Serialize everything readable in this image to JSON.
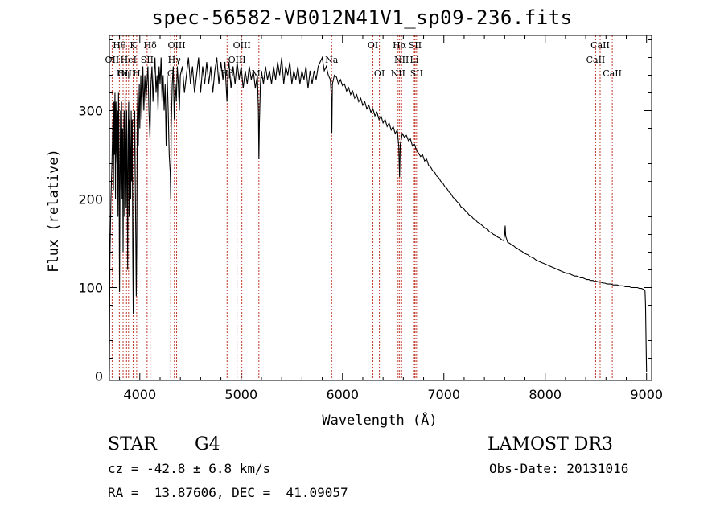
{
  "chart_data": {
    "type": "line",
    "title": "spec-56582-VB012N41V1_sp09-236.fits",
    "xlabel": "Wavelength (Å)",
    "ylabel": "Flux (relative)",
    "xlim": [
      3700,
      9050
    ],
    "ylim": [
      -5,
      385
    ],
    "xticks": [
      4000,
      5000,
      6000,
      7000,
      8000,
      9000
    ],
    "yticks": [
      0,
      100,
      200,
      300
    ],
    "line_color": "#000000",
    "marker_color": "#c0392b",
    "spectrum": [
      [
        3700,
        5
      ],
      [
        3705,
        130
      ],
      [
        3715,
        200
      ],
      [
        3725,
        240
      ],
      [
        3735,
        290
      ],
      [
        3740,
        210
      ],
      [
        3745,
        310
      ],
      [
        3750,
        250
      ],
      [
        3755,
        320
      ],
      [
        3760,
        200
      ],
      [
        3765,
        310
      ],
      [
        3770,
        260
      ],
      [
        3775,
        240
      ],
      [
        3780,
        300
      ],
      [
        3785,
        180
      ],
      [
        3790,
        320
      ],
      [
        3795,
        250
      ],
      [
        3800,
        95
      ],
      [
        3805,
        230
      ],
      [
        3810,
        300
      ],
      [
        3815,
        210
      ],
      [
        3820,
        310
      ],
      [
        3825,
        200
      ],
      [
        3830,
        280
      ],
      [
        3835,
        140
      ],
      [
        3840,
        260
      ],
      [
        3845,
        300
      ],
      [
        3850,
        180
      ],
      [
        3855,
        320
      ],
      [
        3860,
        260
      ],
      [
        3865,
        190
      ],
      [
        3870,
        300
      ],
      [
        3875,
        230
      ],
      [
        3880,
        120
      ],
      [
        3885,
        270
      ],
      [
        3890,
        310
      ],
      [
        3895,
        180
      ],
      [
        3900,
        290
      ],
      [
        3905,
        250
      ],
      [
        3910,
        200
      ],
      [
        3915,
        300
      ],
      [
        3920,
        220
      ],
      [
        3925,
        290
      ],
      [
        3930,
        140
      ],
      [
        3935,
        70
      ],
      [
        3940,
        180
      ],
      [
        3945,
        280
      ],
      [
        3950,
        300
      ],
      [
        3955,
        220
      ],
      [
        3960,
        160
      ],
      [
        3965,
        90
      ],
      [
        3970,
        150
      ],
      [
        3975,
        290
      ],
      [
        3980,
        320
      ],
      [
        3985,
        260
      ],
      [
        3990,
        300
      ],
      [
        3995,
        330
      ],
      [
        4000,
        280
      ],
      [
        4010,
        340
      ],
      [
        4020,
        290
      ],
      [
        4030,
        350
      ],
      [
        4040,
        300
      ],
      [
        4050,
        340
      ],
      [
        4060,
        310
      ],
      [
        4070,
        330
      ],
      [
        4080,
        350
      ],
      [
        4090,
        300
      ],
      [
        4100,
        270
      ],
      [
        4110,
        330
      ],
      [
        4120,
        350
      ],
      [
        4130,
        310
      ],
      [
        4140,
        340
      ],
      [
        4150,
        360
      ],
      [
        4160,
        320
      ],
      [
        4170,
        340
      ],
      [
        4180,
        300
      ],
      [
        4190,
        350
      ],
      [
        4200,
        330
      ],
      [
        4210,
        360
      ],
      [
        4220,
        310
      ],
      [
        4230,
        340
      ],
      [
        4240,
        300
      ],
      [
        4250,
        330
      ],
      [
        4260,
        260
      ],
      [
        4270,
        340
      ],
      [
        4280,
        300
      ],
      [
        4290,
        250
      ],
      [
        4300,
        230
      ],
      [
        4305,
        200
      ],
      [
        4310,
        280
      ],
      [
        4320,
        330
      ],
      [
        4330,
        350
      ],
      [
        4340,
        290
      ],
      [
        4350,
        330
      ],
      [
        4360,
        310
      ],
      [
        4370,
        350
      ],
      [
        4380,
        330
      ],
      [
        4390,
        300
      ],
      [
        4400,
        340
      ],
      [
        4420,
        350
      ],
      [
        4440,
        320
      ],
      [
        4460,
        340
      ],
      [
        4480,
        360
      ],
      [
        4500,
        330
      ],
      [
        4520,
        350
      ],
      [
        4540,
        320
      ],
      [
        4560,
        340
      ],
      [
        4580,
        360
      ],
      [
        4600,
        320
      ],
      [
        4620,
        350
      ],
      [
        4640,
        330
      ],
      [
        4660,
        355
      ],
      [
        4680,
        330
      ],
      [
        4700,
        350
      ],
      [
        4720,
        320
      ],
      [
        4740,
        345
      ],
      [
        4760,
        360
      ],
      [
        4780,
        330
      ],
      [
        4800,
        355
      ],
      [
        4820,
        335
      ],
      [
        4840,
        355
      ],
      [
        4860,
        310
      ],
      [
        4870,
        345
      ],
      [
        4880,
        355
      ],
      [
        4900,
        325
      ],
      [
        4920,
        350
      ],
      [
        4940,
        330
      ],
      [
        4960,
        355
      ],
      [
        4980,
        335
      ],
      [
        5000,
        350
      ],
      [
        5020,
        325
      ],
      [
        5040,
        345
      ],
      [
        5060,
        330
      ],
      [
        5080,
        350
      ],
      [
        5100,
        335
      ],
      [
        5120,
        345
      ],
      [
        5140,
        325
      ],
      [
        5160,
        340
      ],
      [
        5170,
        300
      ],
      [
        5175,
        245
      ],
      [
        5180,
        285
      ],
      [
        5190,
        330
      ],
      [
        5200,
        345
      ],
      [
        5220,
        330
      ],
      [
        5240,
        350
      ],
      [
        5260,
        335
      ],
      [
        5280,
        345
      ],
      [
        5300,
        330
      ],
      [
        5320,
        350
      ],
      [
        5340,
        335
      ],
      [
        5360,
        355
      ],
      [
        5380,
        340
      ],
      [
        5400,
        360
      ],
      [
        5420,
        330
      ],
      [
        5440,
        350
      ],
      [
        5460,
        340
      ],
      [
        5480,
        355
      ],
      [
        5500,
        330
      ],
      [
        5520,
        345
      ],
      [
        5540,
        335
      ],
      [
        5560,
        350
      ],
      [
        5580,
        330
      ],
      [
        5600,
        345
      ],
      [
        5620,
        335
      ],
      [
        5640,
        350
      ],
      [
        5660,
        325
      ],
      [
        5680,
        345
      ],
      [
        5700,
        330
      ],
      [
        5720,
        345
      ],
      [
        5740,
        335
      ],
      [
        5760,
        350
      ],
      [
        5780,
        355
      ],
      [
        5800,
        360
      ],
      [
        5820,
        345
      ],
      [
        5840,
        350
      ],
      [
        5860,
        340
      ],
      [
        5880,
        335
      ],
      [
        5890,
        315
      ],
      [
        5895,
        275
      ],
      [
        5900,
        330
      ],
      [
        5920,
        340
      ],
      [
        5940,
        338
      ],
      [
        5960,
        330
      ],
      [
        5980,
        335
      ],
      [
        6000,
        328
      ],
      [
        6020,
        330
      ],
      [
        6040,
        322
      ],
      [
        6060,
        326
      ],
      [
        6080,
        318
      ],
      [
        6100,
        322
      ],
      [
        6120,
        314
      ],
      [
        6140,
        318
      ],
      [
        6160,
        310
      ],
      [
        6180,
        314
      ],
      [
        6200,
        306
      ],
      [
        6220,
        310
      ],
      [
        6240,
        302
      ],
      [
        6260,
        306
      ],
      [
        6280,
        298
      ],
      [
        6300,
        302
      ],
      [
        6320,
        294
      ],
      [
        6340,
        298
      ],
      [
        6360,
        290
      ],
      [
        6380,
        294
      ],
      [
        6400,
        286
      ],
      [
        6420,
        290
      ],
      [
        6440,
        282
      ],
      [
        6460,
        286
      ],
      [
        6480,
        278
      ],
      [
        6500,
        282
      ],
      [
        6520,
        274
      ],
      [
        6540,
        278
      ],
      [
        6555,
        260
      ],
      [
        6563,
        225
      ],
      [
        6570,
        262
      ],
      [
        6590,
        274
      ],
      [
        6610,
        270
      ],
      [
        6630,
        272
      ],
      [
        6650,
        266
      ],
      [
        6670,
        268
      ],
      [
        6690,
        260
      ],
      [
        6710,
        262
      ],
      [
        6730,
        255
      ],
      [
        6750,
        252
      ],
      [
        6770,
        248
      ],
      [
        6790,
        250
      ],
      [
        6810,
        243
      ],
      [
        6830,
        245
      ],
      [
        6850,
        238
      ],
      [
        6870,
        236
      ],
      [
        6890,
        232
      ],
      [
        6910,
        230
      ],
      [
        6930,
        226
      ],
      [
        6950,
        224
      ],
      [
        6970,
        220
      ],
      [
        6990,
        218
      ],
      [
        7010,
        214
      ],
      [
        7030,
        212
      ],
      [
        7050,
        208
      ],
      [
        7070,
        206
      ],
      [
        7090,
        202
      ],
      [
        7110,
        200
      ],
      [
        7130,
        197
      ],
      [
        7150,
        195
      ],
      [
        7170,
        191
      ],
      [
        7190,
        190
      ],
      [
        7210,
        187
      ],
      [
        7230,
        185
      ],
      [
        7250,
        182
      ],
      [
        7270,
        181
      ],
      [
        7290,
        178
      ],
      [
        7310,
        177
      ],
      [
        7330,
        174
      ],
      [
        7350,
        173
      ],
      [
        7370,
        171
      ],
      [
        7390,
        169
      ],
      [
        7410,
        167
      ],
      [
        7430,
        166
      ],
      [
        7450,
        163
      ],
      [
        7470,
        162
      ],
      [
        7490,
        160
      ],
      [
        7510,
        159
      ],
      [
        7530,
        157
      ],
      [
        7550,
        156
      ],
      [
        7570,
        154
      ],
      [
        7590,
        153
      ],
      [
        7600,
        160
      ],
      [
        7605,
        170
      ],
      [
        7610,
        158
      ],
      [
        7630,
        151
      ],
      [
        7650,
        150
      ],
      [
        7670,
        148
      ],
      [
        7690,
        147
      ],
      [
        7710,
        145
      ],
      [
        7730,
        144
      ],
      [
        7750,
        142
      ],
      [
        7770,
        141
      ],
      [
        7790,
        139
      ],
      [
        7810,
        138
      ],
      [
        7830,
        137
      ],
      [
        7850,
        135
      ],
      [
        7870,
        134
      ],
      [
        7890,
        133
      ],
      [
        7910,
        131
      ],
      [
        7930,
        130
      ],
      [
        7950,
        129
      ],
      [
        7970,
        128
      ],
      [
        7990,
        127
      ],
      [
        8010,
        126
      ],
      [
        8030,
        125
      ],
      [
        8050,
        124
      ],
      [
        8070,
        123
      ],
      [
        8090,
        122
      ],
      [
        8110,
        121
      ],
      [
        8130,
        120
      ],
      [
        8150,
        119
      ],
      [
        8170,
        118
      ],
      [
        8190,
        117
      ],
      [
        8210,
        116
      ],
      [
        8230,
        116
      ],
      [
        8250,
        115
      ],
      [
        8270,
        114
      ],
      [
        8290,
        113
      ],
      [
        8310,
        113
      ],
      [
        8330,
        112
      ],
      [
        8350,
        111
      ],
      [
        8370,
        111
      ],
      [
        8390,
        110
      ],
      [
        8410,
        109
      ],
      [
        8430,
        109
      ],
      [
        8450,
        108
      ],
      [
        8470,
        108
      ],
      [
        8490,
        107
      ],
      [
        8510,
        107
      ],
      [
        8530,
        106
      ],
      [
        8550,
        106
      ],
      [
        8570,
        105
      ],
      [
        8590,
        105
      ],
      [
        8610,
        104
      ],
      [
        8630,
        104
      ],
      [
        8650,
        104
      ],
      [
        8670,
        103
      ],
      [
        8690,
        103
      ],
      [
        8710,
        103
      ],
      [
        8730,
        102
      ],
      [
        8750,
        102
      ],
      [
        8770,
        102
      ],
      [
        8790,
        101
      ],
      [
        8810,
        101
      ],
      [
        8830,
        101
      ],
      [
        8850,
        100
      ],
      [
        8870,
        100
      ],
      [
        8890,
        100
      ],
      [
        8910,
        100
      ],
      [
        8930,
        99
      ],
      [
        8950,
        99
      ],
      [
        8970,
        98
      ],
      [
        8985,
        96
      ],
      [
        8990,
        80
      ],
      [
        8995,
        40
      ],
      [
        9000,
        5
      ]
    ],
    "line_markers": [
      {
        "label": "Hθ",
        "wavelength": 3798,
        "row": 0
      },
      {
        "label": "K",
        "wavelength": 3934,
        "row": 0
      },
      {
        "label": "Hδ",
        "wavelength": 4102,
        "row": 0
      },
      {
        "label": "OII",
        "wavelength": 3727,
        "row": 1
      },
      {
        "label": "HeI",
        "wavelength": 3889,
        "row": 1
      },
      {
        "label": "SII",
        "wavelength": 4072,
        "row": 1
      },
      {
        "label": "OIII",
        "wavelength": 3869,
        "row": 2
      },
      {
        "label": "Hη",
        "wavelength": 3835,
        "row": 2
      },
      {
        "label": "H",
        "wavelength": 3969,
        "row": 2
      },
      {
        "label": "G",
        "wavelength": 4305,
        "row": 2
      },
      {
        "label": "OIII",
        "wavelength": 4363,
        "row": 0
      },
      {
        "label": "Hγ",
        "wavelength": 4341,
        "row": 1
      },
      {
        "label": "OIII",
        "wavelength": 5007,
        "row": 0
      },
      {
        "label": "OIII",
        "wavelength": 4959,
        "row": 1
      },
      {
        "label": "Hβ",
        "wavelength": 4861,
        "row": 2
      },
      {
        "label": "Mg",
        "wavelength": 5175,
        "row": 2
      },
      {
        "label": "Na",
        "wavelength": 5893,
        "row": 1
      },
      {
        "label": "OI",
        "wavelength": 6300,
        "row": 0
      },
      {
        "label": "OI",
        "wavelength": 6364,
        "row": 2
      },
      {
        "label": "Hα",
        "wavelength": 6563,
        "row": 0
      },
      {
        "label": "SII",
        "wavelength": 6716,
        "row": 0
      },
      {
        "label": "NII",
        "wavelength": 6583,
        "row": 1
      },
      {
        "label": "Li",
        "wavelength": 6708,
        "row": 1
      },
      {
        "label": "NII",
        "wavelength": 6548,
        "row": 2
      },
      {
        "label": "SII",
        "wavelength": 6731,
        "row": 2
      },
      {
        "label": "CaII",
        "wavelength": 8542,
        "row": 0
      },
      {
        "label": "CaII",
        "wavelength": 8498,
        "row": 1
      },
      {
        "label": "CaII",
        "wavelength": 8662,
        "row": 2
      }
    ]
  },
  "info": {
    "class": "STAR",
    "subclass": "G4",
    "survey": "LAMOST DR3",
    "cz_line": "cz = -42.8 ± 6.8 km/s",
    "obs_date_line": "Obs-Date: 20131016",
    "radec_line": "RA =  13.87606, DEC =  41.09057"
  }
}
